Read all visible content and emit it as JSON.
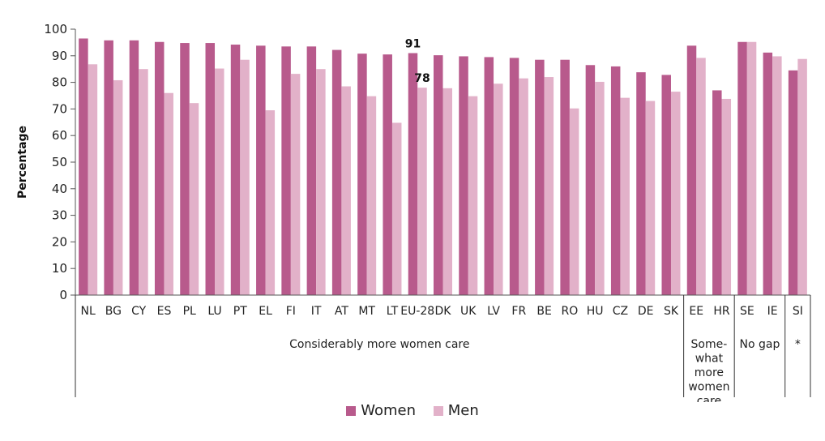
{
  "chart_data": {
    "type": "bar",
    "ylabel": "Percentage",
    "ylim": [
      0,
      100
    ],
    "yticks": [
      0,
      10,
      20,
      30,
      40,
      50,
      60,
      70,
      80,
      90,
      100
    ],
    "categories": [
      "NL",
      "BG",
      "CY",
      "ES",
      "PL",
      "LU",
      "PT",
      "EL",
      "FI",
      "IT",
      "AT",
      "MT",
      "LT",
      "EU-28",
      "DK",
      "UK",
      "LV",
      "FR",
      "BE",
      "RO",
      "HU",
      "CZ",
      "DE",
      "SK",
      "EE",
      "HR",
      "SE",
      "IE",
      "SI"
    ],
    "series": [
      {
        "name": "Women",
        "color": "#b85a8c",
        "values": [
          96.5,
          95.8,
          95.8,
          95.2,
          94.8,
          94.8,
          94.2,
          93.8,
          93.5,
          93.5,
          92.2,
          90.8,
          90.5,
          91,
          90.2,
          89.8,
          89.5,
          89.2,
          88.5,
          88.5,
          86.5,
          86,
          83.8,
          82.8,
          93.8,
          77,
          95.2,
          91.2,
          84.5
        ]
      },
      {
        "name": "Men",
        "color": "#e2b1c9",
        "values": [
          86.8,
          80.8,
          85,
          76,
          72.2,
          85.2,
          88.5,
          69.5,
          83.2,
          85,
          78.5,
          74.8,
          64.8,
          78,
          77.8,
          74.8,
          79.5,
          81.5,
          82,
          70.2,
          80.2,
          74.2,
          73,
          76.5,
          89.2,
          73.8,
          95.2,
          89.8,
          88.8
        ]
      }
    ],
    "annotations": [
      {
        "category": "EU-28",
        "series": "Women",
        "text": "91"
      },
      {
        "category": "EU-28",
        "series": "Men",
        "text": "78"
      }
    ],
    "groups": [
      {
        "label_lines": [
          "Considerably more women care"
        ],
        "from": 0,
        "to": 23
      },
      {
        "label_lines": [
          "Some-",
          "what",
          "more",
          "women",
          "care"
        ],
        "from": 24,
        "to": 25
      },
      {
        "label_lines": [
          "No gap"
        ],
        "from": 26,
        "to": 27
      },
      {
        "label_lines": [
          "*"
        ],
        "from": 28,
        "to": 28
      }
    ],
    "legend": {
      "position": "bottom"
    }
  }
}
